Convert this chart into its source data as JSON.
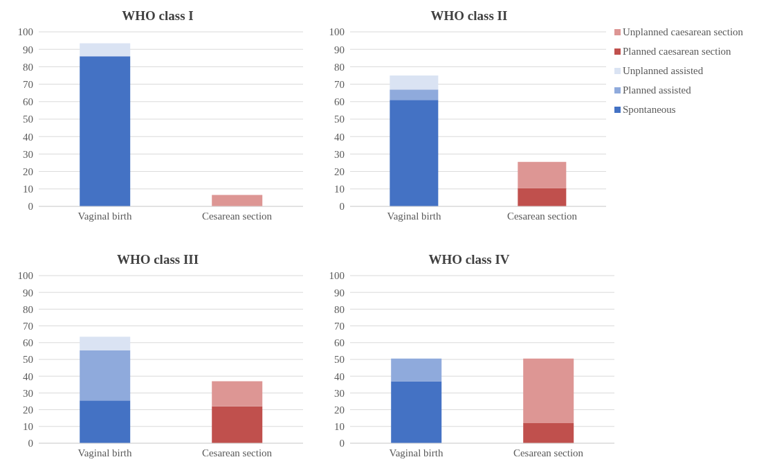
{
  "chart_data": [
    {
      "type": "bar",
      "title": "WHO class I",
      "categories": [
        "Vaginal birth",
        "Cesarean section"
      ],
      "stacked": true,
      "ylim": [
        0,
        100
      ],
      "yticks": [
        0,
        10,
        20,
        30,
        40,
        50,
        60,
        70,
        80,
        90,
        100
      ],
      "grid": "y",
      "legend": false,
      "series": [
        {
          "color": "#4472c4",
          "values": [
            86,
            0
          ]
        },
        {
          "color": "#8faadc",
          "values": [
            0,
            0
          ]
        },
        {
          "color": "#dae3f3",
          "values": [
            7.5,
            0
          ]
        },
        {
          "color": "#c0504d",
          "values": [
            0,
            0
          ]
        },
        {
          "color": "#dd9694",
          "values": [
            0,
            6.5
          ]
        }
      ]
    },
    {
      "type": "bar",
      "title": "WHO class II",
      "categories": [
        "Vaginal birth",
        "Cesarean section"
      ],
      "stacked": true,
      "ylim": [
        0,
        100
      ],
      "yticks": [
        0,
        10,
        20,
        30,
        40,
        50,
        60,
        70,
        80,
        90,
        100
      ],
      "grid": "y",
      "legend": "right",
      "series": [
        {
          "name": "Spontaneous",
          "color": "#4472c4",
          "values": [
            61,
            0
          ]
        },
        {
          "name": "Planned assisted",
          "color": "#8faadc",
          "values": [
            6,
            0
          ]
        },
        {
          "name": "Unplanned assisted",
          "color": "#dae3f3",
          "values": [
            8,
            0
          ]
        },
        {
          "name": "Planned caesarean section",
          "color": "#c0504d",
          "values": [
            0,
            10.5
          ]
        },
        {
          "name": "Unplanned caesarean section",
          "color": "#dd9694",
          "values": [
            0,
            15
          ]
        }
      ]
    },
    {
      "type": "bar",
      "title": "WHO class III",
      "categories": [
        "Vaginal birth",
        "Cesarean section"
      ],
      "stacked": true,
      "ylim": [
        0,
        100
      ],
      "yticks": [
        0,
        10,
        20,
        30,
        40,
        50,
        60,
        70,
        80,
        90,
        100
      ],
      "grid": "y",
      "legend": false,
      "series": [
        {
          "color": "#4472c4",
          "values": [
            25.5,
            0
          ]
        },
        {
          "color": "#8faadc",
          "values": [
            30,
            0
          ]
        },
        {
          "color": "#dae3f3",
          "values": [
            8,
            0
          ]
        },
        {
          "color": "#c0504d",
          "values": [
            0,
            22
          ]
        },
        {
          "color": "#dd9694",
          "values": [
            0,
            15
          ]
        }
      ]
    },
    {
      "type": "bar",
      "title": "WHO class IV",
      "categories": [
        "Vaginal birth",
        "Cesarean section"
      ],
      "stacked": true,
      "ylim": [
        0,
        100
      ],
      "yticks": [
        0,
        10,
        20,
        30,
        40,
        50,
        60,
        70,
        80,
        90,
        100
      ],
      "grid": "y",
      "legend": false,
      "series": [
        {
          "color": "#4472c4",
          "values": [
            37,
            0
          ]
        },
        {
          "color": "#8faadc",
          "values": [
            13.5,
            0
          ]
        },
        {
          "color": "#dae3f3",
          "values": [
            0,
            0
          ]
        },
        {
          "color": "#c0504d",
          "values": [
            0,
            12
          ]
        },
        {
          "color": "#dd9694",
          "values": [
            0,
            38.5
          ]
        }
      ]
    }
  ]
}
